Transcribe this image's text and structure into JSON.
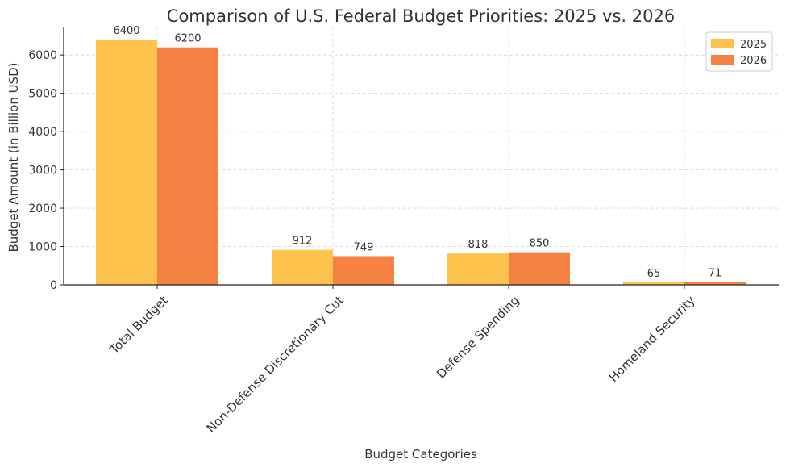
{
  "chart_data": {
    "type": "bar",
    "title": "Comparison of U.S. Federal Budget Priorities: 2025 vs. 2026",
    "xlabel": "Budget Categories",
    "ylabel": "Budget Amount (in Billion USD)",
    "categories": [
      "Total Budget",
      "Non-Defense Discretionary Cut",
      "Defense Spending",
      "Homeland Security"
    ],
    "series": [
      {
        "name": "2025",
        "values": [
          6400,
          912,
          818,
          65
        ],
        "color": "#FDC34D"
      },
      {
        "name": "2026",
        "values": [
          6200,
          749,
          850,
          71
        ],
        "color": "#F58142"
      }
    ],
    "yticks": [
      0,
      1000,
      2000,
      3000,
      4000,
      5000,
      6000
    ],
    "ylim": [
      0,
      6720
    ],
    "grid": true,
    "legend_position": "top-right"
  }
}
